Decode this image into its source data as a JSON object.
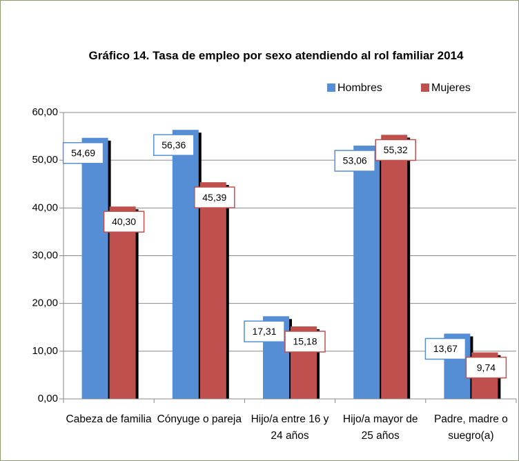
{
  "chart_data": {
    "type": "bar",
    "title": "Gráfico 14. Tasa de empleo por sexo atendiendo al rol familiar 2014",
    "categories": [
      "Cabeza de familia",
      "Cónyuge o pareja",
      "Hijo/a entre 16 y 24 años",
      "Hijo/a mayor de 25 años",
      "Padre, madre o suegro(a)"
    ],
    "series": [
      {
        "name": "Hombres",
        "color": "#558ed5",
        "values": [
          54.69,
          56.36,
          17.31,
          53.06,
          13.67
        ],
        "value_labels": [
          "54,69",
          "56,36",
          "17,31",
          "53,06",
          "13,67"
        ]
      },
      {
        "name": "Mujeres",
        "color": "#c0504d",
        "values": [
          40.3,
          45.39,
          15.18,
          55.32,
          9.74
        ],
        "value_labels": [
          "40,30",
          "45,39",
          "15,18",
          "55,32",
          "9,74"
        ]
      }
    ],
    "ylim": [
      0,
      60
    ],
    "yticks": [
      {
        "value": 0,
        "label": "0,00"
      },
      {
        "value": 10,
        "label": "10,00"
      },
      {
        "value": 20,
        "label": "20,00"
      },
      {
        "value": 30,
        "label": "30,00"
      },
      {
        "value": 40,
        "label": "40,00"
      },
      {
        "value": 50,
        "label": "50,00"
      },
      {
        "value": 60,
        "label": "60,00"
      }
    ],
    "grid": true,
    "legend": "top-right"
  }
}
